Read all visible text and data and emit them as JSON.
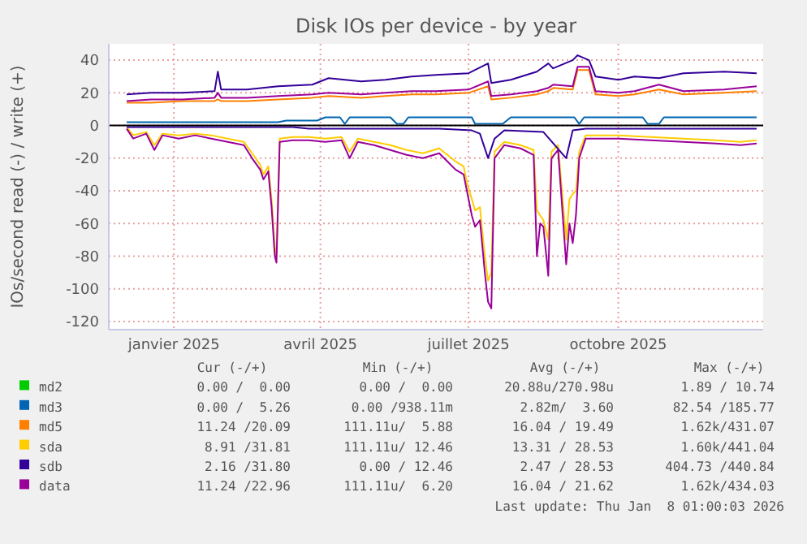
{
  "chart_data": {
    "type": "line",
    "title": "Disk IOs per device - by year",
    "ylabel": "IOs/second read (-) / write (+)",
    "xlim": [
      "2024-12-06",
      "2026-01-12"
    ],
    "xticks": [
      {
        "value": "2025-01-15",
        "label": "janvier 2025"
      },
      {
        "value": "2025-04-15",
        "label": "avril 2025"
      },
      {
        "value": "2025-07-15",
        "label": "juillet 2025"
      },
      {
        "value": "2025-10-15",
        "label": "octobre 2025"
      }
    ],
    "ylim": [
      -125,
      50
    ],
    "yticks": [
      -120,
      -100,
      -80,
      -60,
      -40,
      -20,
      0,
      20,
      40
    ],
    "grid": true,
    "legend": "bottom",
    "marker": "none",
    "line_style": "solid",
    "ref_lines": [
      {
        "axis": "y",
        "value": 0,
        "color": "#000000"
      }
    ],
    "series": [
      {
        "name": "md2",
        "color": "#00cc00"
      },
      {
        "name": "md3",
        "color": "#0066b3",
        "x": [
          "2024-12-17",
          "2025-03-20",
          "2025-03-25",
          "2025-04-13",
          "2025-04-18",
          "2025-04-27",
          "2025-04-30",
          "2025-05-03",
          "2025-05-28",
          "2025-06-01",
          "2025-06-05",
          "2025-06-08",
          "2025-07-17",
          "2025-07-19",
          "2025-08-05",
          "2025-08-10",
          "2025-09-18",
          "2025-09-21",
          "2025-09-24",
          "2025-10-30",
          "2025-11-02",
          "2025-11-09",
          "2025-11-12",
          "2026-01-08"
        ],
        "values": [
          2,
          2,
          3,
          3,
          5,
          5,
          1,
          5,
          5,
          1,
          1,
          5,
          5,
          1,
          1,
          5,
          5,
          1,
          5,
          5,
          1,
          1,
          5,
          5
        ]
      },
      {
        "name": "md5",
        "color": "#ff8000",
        "x": [
          "2024-12-17",
          "2025-01-01",
          "2025-01-20",
          "2025-02-09",
          "2025-02-11",
          "2025-02-13",
          "2025-03-01",
          "2025-03-20",
          "2025-04-10",
          "2025-04-20",
          "2025-05-10",
          "2025-05-25",
          "2025-06-10",
          "2025-06-25",
          "2025-07-15",
          "2025-07-27",
          "2025-07-29",
          "2025-08-10",
          "2025-08-26",
          "2025-09-02",
          "2025-09-05",
          "2025-09-17",
          "2025-09-20",
          "2025-09-27",
          "2025-10-01",
          "2025-10-15",
          "2025-10-25",
          "2025-11-09",
          "2025-11-24",
          "2025-12-19",
          "2026-01-08"
        ],
        "values": [
          14,
          14,
          15,
          15,
          16,
          15,
          15,
          16,
          17,
          18,
          17,
          18,
          19,
          19,
          20,
          24,
          16,
          17,
          19,
          21,
          23,
          22,
          34,
          34,
          19,
          18,
          19,
          22,
          19,
          20,
          21
        ]
      },
      {
        "name": "sda",
        "color": "#ffcc00",
        "x": [
          "2024-12-17",
          "2024-12-21",
          "2024-12-29",
          "2025-01-03",
          "2025-01-08",
          "2025-01-18",
          "2025-01-28",
          "2025-02-07",
          "2025-02-17",
          "2025-02-27",
          "2025-03-04",
          "2025-03-09",
          "2025-03-11",
          "2025-03-14",
          "2025-03-16",
          "2025-03-18",
          "2025-03-19",
          "2025-03-21",
          "2025-03-29",
          "2025-04-08",
          "2025-04-18",
          "2025-04-28",
          "2025-05-03",
          "2025-05-08",
          "2025-05-18",
          "2025-05-28",
          "2025-06-07",
          "2025-06-17",
          "2025-06-27",
          "2025-07-02",
          "2025-07-07",
          "2025-07-12",
          "2025-07-14",
          "2025-07-17",
          "2025-07-19",
          "2025-07-22",
          "2025-07-25",
          "2025-07-27",
          "2025-07-29",
          "2025-07-31",
          "2025-08-06",
          "2025-08-16",
          "2025-08-24",
          "2025-08-26",
          "2025-08-28",
          "2025-08-30",
          "2025-09-02",
          "2025-09-04",
          "2025-09-08",
          "2025-09-13",
          "2025-09-15",
          "2025-09-17",
          "2025-09-19",
          "2025-09-21",
          "2025-09-25",
          "2025-10-15",
          "2025-11-04",
          "2025-11-24",
          "2025-12-14",
          "2025-12-29",
          "2026-01-08"
        ],
        "values": [
          -1,
          -6,
          -4,
          -12,
          -5,
          -6,
          -5,
          -6,
          -8,
          -10,
          -17,
          -24,
          -30,
          -25,
          -45,
          -75,
          -80,
          -8,
          -7,
          -7,
          -8,
          -7,
          -16,
          -8,
          -10,
          -12,
          -15,
          -17,
          -14,
          -18,
          -22,
          -25,
          -35,
          -45,
          -52,
          -50,
          -80,
          -95,
          -90,
          -16,
          -10,
          -12,
          -15,
          -52,
          -55,
          -58,
          -70,
          -16,
          -12,
          -70,
          -45,
          -42,
          -40,
          -16,
          -6,
          -6,
          -7,
          -8,
          -9,
          -10,
          -9
        ]
      },
      {
        "name": "sdb",
        "color": "#330099",
        "x": [
          "2024-12-17",
          "2025-01-01",
          "2025-01-20",
          "2025-02-09",
          "2025-02-11",
          "2025-02-13",
          "2025-03-01",
          "2025-03-20",
          "2025-04-10",
          "2025-04-20",
          "2025-05-10",
          "2025-05-25",
          "2025-06-10",
          "2025-06-25",
          "2025-07-15",
          "2025-07-27",
          "2025-07-29",
          "2025-08-10",
          "2025-08-26",
          "2025-09-02",
          "2025-09-05",
          "2025-09-17",
          "2025-09-20",
          "2025-09-27",
          "2025-10-01",
          "2025-10-15",
          "2025-10-25",
          "2025-11-09",
          "2025-11-24",
          "2025-12-19",
          "2026-01-08"
        ],
        "values": [
          19,
          20,
          20,
          21,
          33,
          22,
          22,
          24,
          25,
          29,
          27,
          28,
          30,
          31,
          32,
          38,
          26,
          28,
          33,
          38,
          35,
          40,
          43,
          40,
          30,
          28,
          30,
          29,
          32,
          33,
          32
        ]
      },
      {
        "color": "#330099",
        "x": [
          "2024-12-17",
          "2025-03-29",
          "2025-04-08",
          "2025-06-27",
          "2025-07-17",
          "2025-07-22",
          "2025-07-27",
          "2025-07-31",
          "2025-08-06",
          "2025-08-30",
          "2025-09-13",
          "2025-09-17",
          "2025-09-25",
          "2026-01-08"
        ],
        "values": [
          -1,
          -1,
          -2,
          -2,
          -3,
          -5,
          -20,
          -8,
          -3,
          -4,
          -20,
          -3,
          -2,
          -2
        ]
      },
      {
        "name": "data",
        "color": "#990099",
        "x": [
          "2024-12-17",
          "2025-01-01",
          "2025-01-20",
          "2025-02-09",
          "2025-02-11",
          "2025-02-13",
          "2025-03-01",
          "2025-03-20",
          "2025-04-10",
          "2025-04-20",
          "2025-05-10",
          "2025-05-25",
          "2025-06-10",
          "2025-06-25",
          "2025-07-15",
          "2025-07-27",
          "2025-07-29",
          "2025-08-10",
          "2025-08-26",
          "2025-09-02",
          "2025-09-05",
          "2025-09-17",
          "2025-09-20",
          "2025-09-27",
          "2025-10-01",
          "2025-10-15",
          "2025-10-25",
          "2025-11-09",
          "2025-11-24",
          "2025-12-19",
          "2026-01-08"
        ],
        "values": [
          15,
          16,
          16,
          17,
          20,
          17,
          17,
          18,
          19,
          20,
          19,
          20,
          21,
          21,
          22,
          27,
          18,
          19,
          21,
          23,
          25,
          24,
          36,
          36,
          21,
          20,
          21,
          25,
          21,
          22,
          24
        ]
      },
      {
        "color": "#990099",
        "x": [
          "2024-12-17",
          "2024-12-21",
          "2024-12-29",
          "2025-01-03",
          "2025-01-08",
          "2025-01-18",
          "2025-01-28",
          "2025-02-07",
          "2025-02-17",
          "2025-02-27",
          "2025-03-04",
          "2025-03-09",
          "2025-03-11",
          "2025-03-14",
          "2025-03-16",
          "2025-03-18",
          "2025-03-19",
          "2025-03-21",
          "2025-03-29",
          "2025-04-08",
          "2025-04-18",
          "2025-04-28",
          "2025-05-03",
          "2025-05-08",
          "2025-05-18",
          "2025-05-28",
          "2025-06-07",
          "2025-06-17",
          "2025-06-27",
          "2025-07-02",
          "2025-07-07",
          "2025-07-12",
          "2025-07-14",
          "2025-07-17",
          "2025-07-19",
          "2025-07-22",
          "2025-07-25",
          "2025-07-27",
          "2025-07-29",
          "2025-07-31",
          "2025-08-06",
          "2025-08-16",
          "2025-08-24",
          "2025-08-26",
          "2025-08-28",
          "2025-08-30",
          "2025-09-02",
          "2025-09-04",
          "2025-09-08",
          "2025-09-13",
          "2025-09-15",
          "2025-09-17",
          "2025-09-19",
          "2025-09-21",
          "2025-09-25",
          "2025-10-15",
          "2025-11-04",
          "2025-11-24",
          "2025-12-14",
          "2025-12-29",
          "2026-01-08"
        ],
        "values": [
          -2,
          -8,
          -5,
          -15,
          -6,
          -8,
          -6,
          -8,
          -10,
          -12,
          -20,
          -27,
          -33,
          -28,
          -50,
          -80,
          -84,
          -10,
          -9,
          -9,
          -10,
          -9,
          -20,
          -10,
          -12,
          -15,
          -18,
          -20,
          -17,
          -22,
          -27,
          -30,
          -40,
          -55,
          -62,
          -58,
          -90,
          -108,
          -112,
          -20,
          -12,
          -14,
          -18,
          -80,
          -60,
          -62,
          -92,
          -20,
          -15,
          -85,
          -60,
          -72,
          -55,
          -20,
          -8,
          -8,
          -9,
          -10,
          -11,
          -12,
          -11
        ]
      }
    ],
    "annotations": [
      "Cur (-/+)",
      "Min (-/+)",
      "Avg (-/+)",
      "Max (-/+)",
      "0.00 /  0.00",
      "0.00 /  0.00",
      "20.88u/270.98u",
      "1.89 / 10.74",
      "0.00 /  5.26",
      "0.00 /938.11m",
      "2.82m/  3.60",
      "82.54 /185.77",
      "11.24 /20.09",
      "111.11u/  5.88",
      "16.04 / 19.49",
      "1.62k/431.07",
      "8.91 /31.81",
      "111.11u/ 12.46",
      "13.31 / 28.53",
      "1.60k/441.04",
      "2.16 /31.80",
      "0.00 / 12.46",
      "2.47 / 28.53",
      "404.73 /440.84",
      "11.24 /22.96",
      "111.11u/  6.20",
      "16.04 / 21.62",
      "1.62k/434.03",
      "Last update: Thu Jan  8 01:00:03 2026"
    ]
  }
}
